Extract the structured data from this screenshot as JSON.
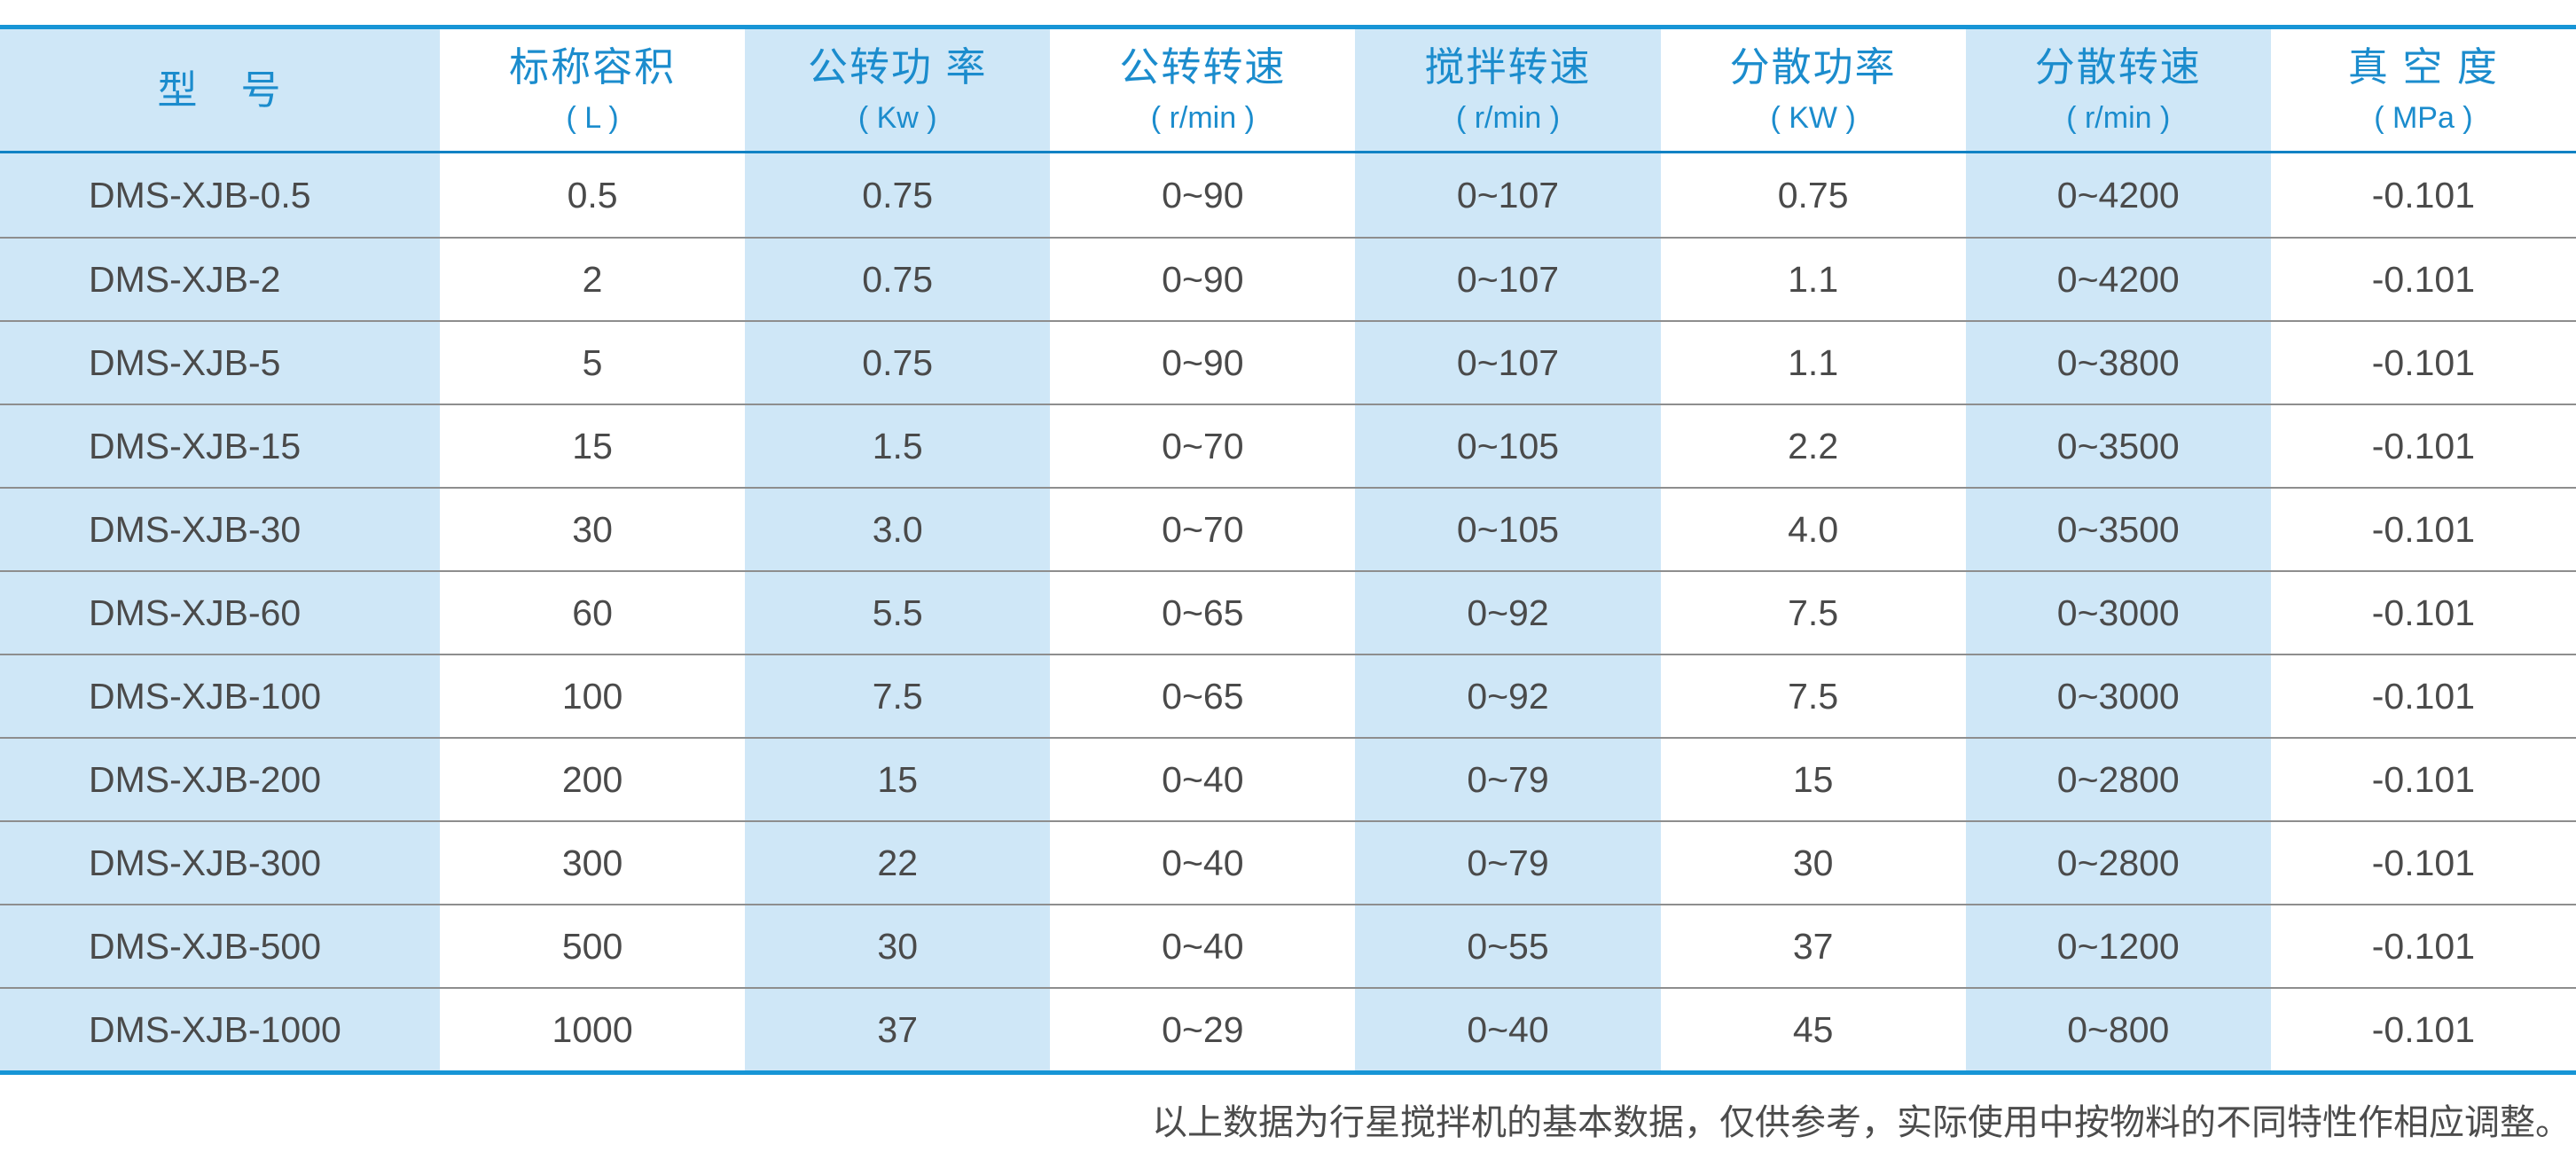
{
  "table": {
    "columns": [
      {
        "label": "型　号",
        "unit": ""
      },
      {
        "label": "标称容积",
        "unit": "( L )"
      },
      {
        "label": "公转功 率",
        "unit": "( Kw )"
      },
      {
        "label": "公转转速",
        "unit": "( r/min )"
      },
      {
        "label": "搅拌转速",
        "unit": "( r/min )"
      },
      {
        "label": "分散功率",
        "unit": "( KW )"
      },
      {
        "label": "分散转速",
        "unit": "( r/min )"
      },
      {
        "label": "真 空 度",
        "unit": "( MPa )"
      }
    ],
    "rows": [
      [
        "DMS-XJB-0.5",
        "0.5",
        "0.75",
        "0~90",
        "0~107",
        "0.75",
        "0~4200",
        "-0.101"
      ],
      [
        "DMS-XJB-2",
        "2",
        "0.75",
        "0~90",
        "0~107",
        "1.1",
        "0~4200",
        "-0.101"
      ],
      [
        "DMS-XJB-5",
        "5",
        "0.75",
        "0~90",
        "0~107",
        "1.1",
        "0~3800",
        "-0.101"
      ],
      [
        "DMS-XJB-15",
        "15",
        "1.5",
        "0~70",
        "0~105",
        "2.2",
        "0~3500",
        "-0.101"
      ],
      [
        "DMS-XJB-30",
        "30",
        "3.0",
        "0~70",
        "0~105",
        "4.0",
        "0~3500",
        "-0.101"
      ],
      [
        "DMS-XJB-60",
        "60",
        "5.5",
        "0~65",
        "0~92",
        "7.5",
        "0~3000",
        "-0.101"
      ],
      [
        "DMS-XJB-100",
        "100",
        "7.5",
        "0~65",
        "0~92",
        "7.5",
        "0~3000",
        "-0.101"
      ],
      [
        "DMS-XJB-200",
        "200",
        "15",
        "0~40",
        "0~79",
        "15",
        "0~2800",
        "-0.101"
      ],
      [
        "DMS-XJB-300",
        "300",
        "22",
        "0~40",
        "0~79",
        "30",
        "0~2800",
        "-0.101"
      ],
      [
        "DMS-XJB-500",
        "500",
        "30",
        "0~40",
        "0~55",
        "37",
        "0~1200",
        "-0.101"
      ],
      [
        "DMS-XJB-1000",
        "1000",
        "37",
        "0~29",
        "0~40",
        "45",
        "0~800",
        "-0.101"
      ]
    ]
  },
  "footer": {
    "note": "以上数据为行星搅拌机的基本数据，仅供参考，实际使用中按物料的不同特性作相应调整。"
  },
  "colors": {
    "stripe_blue": "#cfe7f7",
    "rule_blue": "#1795d6",
    "header_text_blue": "#1b8ccd",
    "data_text_gray": "#4a4a4a",
    "row_separator_gray": "#8e8e8e"
  }
}
